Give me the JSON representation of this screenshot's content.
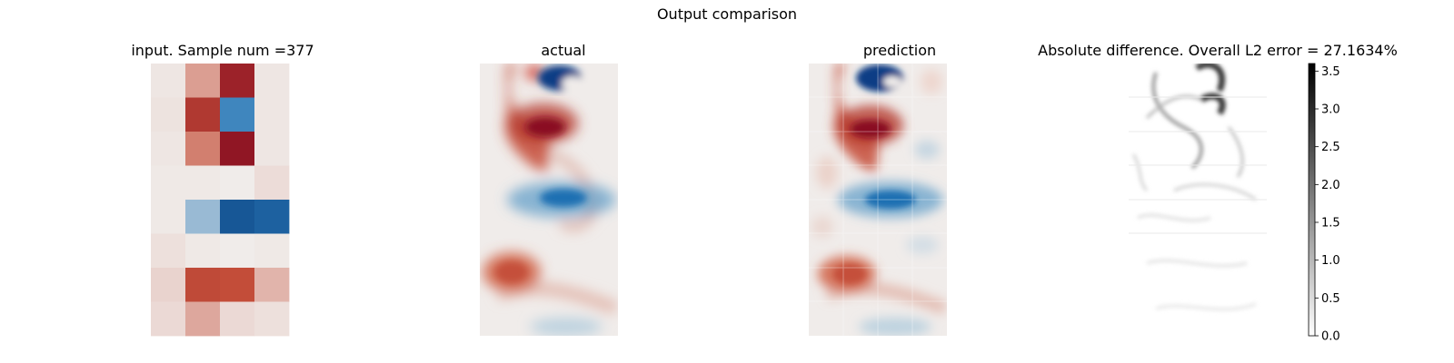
{
  "figure_title": "Output comparison",
  "panels": {
    "input_title": "input. Sample num =377",
    "actual_title": "actual",
    "prediction_title": "prediction",
    "difference_title": "Absolute difference. Overall L2 error = 27.1634%"
  },
  "colormap": {
    "field": "diverging blue-white-red",
    "difference": "gray",
    "field_colors": [
      "#083a7a",
      "#2b7bb9",
      "#f0ecea",
      "#c5503a",
      "#8a0f22"
    ],
    "difference_colors": [
      "#ffffff",
      "#000000"
    ]
  },
  "chart_data": {
    "type": "heatmap",
    "title": "Output comparison",
    "input_grid": {
      "title": "input. Sample num =377",
      "rows": 8,
      "cols": 4,
      "values": [
        [
          0.02,
          0.25,
          0.85,
          0.02
        ],
        [
          0.03,
          0.68,
          -0.45,
          0.02
        ],
        [
          0.02,
          0.35,
          0.95,
          0.02
        ],
        [
          0.01,
          0.01,
          0.0,
          0.05
        ],
        [
          0.01,
          -0.22,
          -0.78,
          -0.7
        ],
        [
          0.04,
          0.01,
          0.0,
          0.01
        ],
        [
          0.08,
          0.55,
          0.52,
          0.18
        ],
        [
          0.06,
          0.22,
          0.06,
          0.04
        ]
      ]
    },
    "difference_colorbar": {
      "label": "",
      "range": [
        0.0,
        3.6
      ],
      "ticks": [
        "0.0",
        "0.5",
        "1.0",
        "1.5",
        "2.0",
        "2.5",
        "3.0",
        "3.5"
      ]
    }
  }
}
